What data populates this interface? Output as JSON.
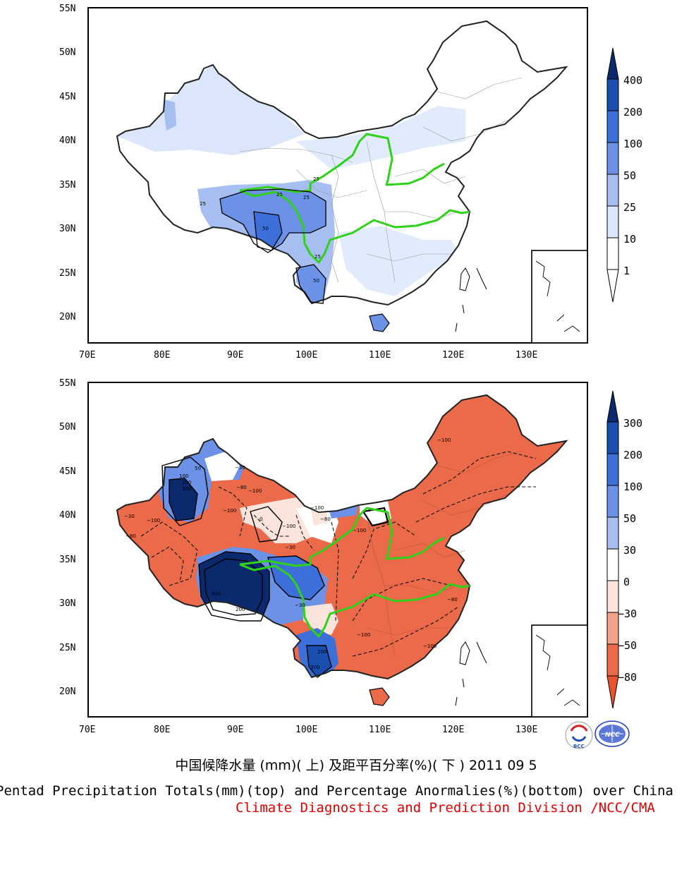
{
  "maps": {
    "longitude_ticks": [
      "70E",
      "80E",
      "90E",
      "100E",
      "110E",
      "120E",
      "130E"
    ],
    "latitude_ticks": [
      "55N",
      "50N",
      "45N",
      "40N",
      "35N",
      "30N",
      "25N",
      "20N"
    ],
    "top": {
      "colorbar_levels": [
        "400",
        "200",
        "100",
        "50",
        "25",
        "10",
        "1"
      ],
      "colorbar_colors": [
        "#0b2a6e",
        "#1a4fb0",
        "#3d6fd8",
        "#6b92e6",
        "#a6bff0",
        "#dbe6fb",
        "#ffffff"
      ],
      "contour_labels": [
        "25",
        "25",
        "25",
        "25",
        "50",
        "50",
        "25"
      ]
    },
    "bottom": {
      "colorbar_levels": [
        "300",
        "200",
        "100",
        "50",
        "30",
        "0",
        "−30",
        "−50",
        "−80"
      ],
      "colorbar_colors": [
        "#0b2a6e",
        "#1a4fb0",
        "#3d6fd8",
        "#6b92e6",
        "#a6bff0",
        "#ffffff",
        "#fbe4dc",
        "#f4a38a",
        "#ea6a4a"
      ],
      "contour_labels": [
        "−100",
        "−100",
        "−100",
        "−100",
        "−80",
        "−30",
        "−30",
        "−80",
        "50",
        "200",
        "300",
        "100",
        "−100",
        "−100",
        "−100",
        "−80",
        "300",
        "200",
        "−100",
        "−80",
        "200",
        "300",
        "−100",
        "−30",
        "−30",
        "0"
      ]
    }
  },
  "logos": {
    "bcc": "BCC",
    "ncc": "NCC"
  },
  "captions": {
    "chinese": "中国候降水量 (mm)( 上) 及距平百分率(%)( 下 ) 2011 09 5",
    "english": "Pentad Precipitation Totals(mm)(top) and Percentage Anormalies(%)(bottom) over China",
    "division": "Climate Diagnostics and Prediction Division /NCC/CMA"
  }
}
